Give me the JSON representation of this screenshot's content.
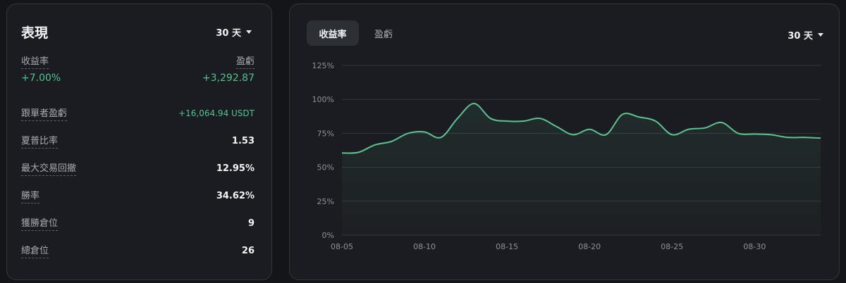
{
  "performance": {
    "title": "表現",
    "period_dropdown": "30 天",
    "return_rate_label": "收益率",
    "return_rate_value": "+7.00%",
    "pnl_label": "盈虧",
    "pnl_value": "+3,292.87",
    "stats": [
      {
        "label": "跟單者盈虧",
        "value": "+16,064.94 USDT",
        "positive": true
      },
      {
        "label": "夏普比率",
        "value": "1.53"
      },
      {
        "label": "最大交易回撤",
        "value": "12.95%"
      },
      {
        "label": "勝率",
        "value": "34.62%"
      },
      {
        "label": "獲勝倉位",
        "value": "9"
      },
      {
        "label": "總倉位",
        "value": "26"
      }
    ]
  },
  "chart_panel": {
    "tabs": [
      {
        "label": "收益率",
        "active": true
      },
      {
        "label": "盈虧",
        "active": false
      }
    ],
    "period_dropdown": "30 天"
  },
  "chart_data": {
    "type": "area",
    "x_ticks": [
      "08-05",
      "08-10",
      "08-15",
      "08-20",
      "08-25",
      "08-30"
    ],
    "y_ticks": [
      "0%",
      "25%",
      "50%",
      "75%",
      "100%",
      "125%"
    ],
    "ylim": [
      0,
      125
    ],
    "x": [
      "08-05",
      "08-06",
      "08-07",
      "08-08",
      "08-09",
      "08-10",
      "08-11",
      "08-12",
      "08-13",
      "08-14",
      "08-15",
      "08-16",
      "08-17",
      "08-18",
      "08-19",
      "08-20",
      "08-21",
      "08-22",
      "08-23",
      "08-24",
      "08-25",
      "08-26",
      "08-27",
      "08-28",
      "08-29",
      "08-30",
      "08-31",
      "09-01",
      "09-02",
      "09-03"
    ],
    "values": [
      60.5,
      61,
      66.5,
      69,
      75,
      76,
      72,
      86,
      97,
      86,
      84,
      84,
      86,
      80,
      74,
      78,
      74,
      89,
      87,
      84,
      74,
      78,
      79,
      83,
      75,
      74.5,
      74,
      72,
      72,
      71.5
    ],
    "grid": true,
    "color": "#5cc48f"
  }
}
